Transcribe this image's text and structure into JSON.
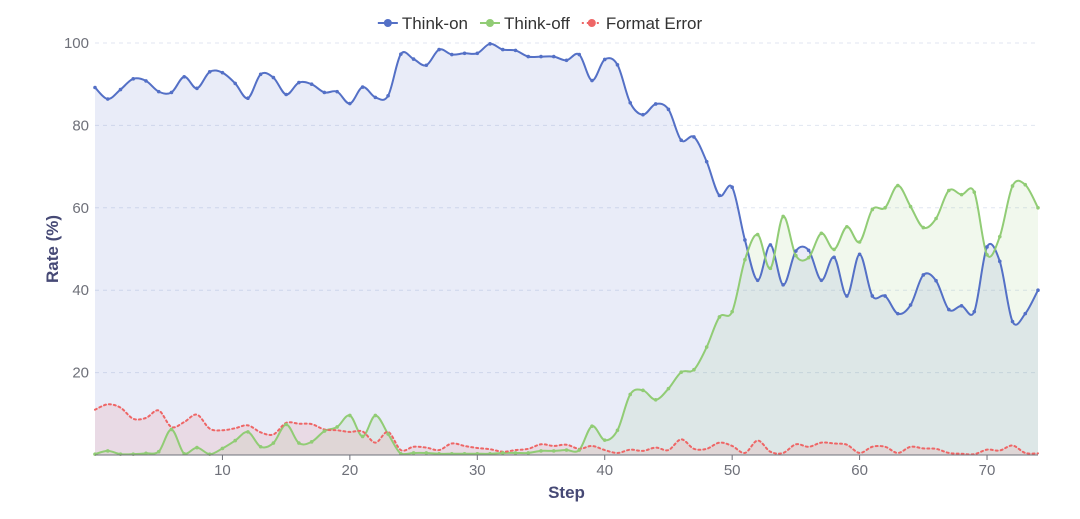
{
  "chart_data": {
    "type": "line",
    "xlabel": "Step",
    "ylabel": "Rate (%)",
    "xlim": [
      0,
      74
    ],
    "ylim": [
      0,
      100
    ],
    "xticks": [
      "10",
      "20",
      "30",
      "40",
      "50",
      "60",
      "70"
    ],
    "yticks": [
      "20",
      "40",
      "60",
      "80",
      "100"
    ],
    "grid": "horizontal dashed",
    "legend_position": "top-center",
    "x": [
      0,
      1,
      2,
      3,
      4,
      5,
      6,
      7,
      8,
      9,
      10,
      11,
      12,
      13,
      14,
      15,
      16,
      17,
      18,
      19,
      20,
      21,
      22,
      23,
      24,
      25,
      26,
      27,
      28,
      29,
      30,
      31,
      32,
      33,
      34,
      35,
      36,
      37,
      38,
      39,
      40,
      41,
      42,
      43,
      44,
      45,
      46,
      47,
      48,
      49,
      50,
      51,
      52,
      53,
      54,
      55,
      56,
      57,
      58,
      59,
      60,
      61,
      62,
      63,
      64,
      65,
      66,
      67,
      68,
      69,
      70,
      71,
      72,
      73,
      74
    ],
    "series": [
      {
        "name": "Think-on",
        "color": "#5470c6",
        "style": "solid",
        "values": [
          89.2,
          86.4,
          88.7,
          91.3,
          90.8,
          88.2,
          88.0,
          91.8,
          89.0,
          93.0,
          92.8,
          90.2,
          86.6,
          92.4,
          91.6,
          87.5,
          90.4,
          90.0,
          88.0,
          88.2,
          85.3,
          89.3,
          86.8,
          87.2,
          97.3,
          96.1,
          94.6,
          98.4,
          97.2,
          97.5,
          97.5,
          99.8,
          98.4,
          98.2,
          96.7,
          96.7,
          96.7,
          95.8,
          97.2,
          90.9,
          96.0,
          94.7,
          85.5,
          82.6,
          85.2,
          83.9,
          76.4,
          77.2,
          71.2,
          63.0,
          65.0,
          52.2,
          42.4,
          51.0,
          41.3,
          49.5,
          49.7,
          42.4,
          48.0,
          38.6,
          48.7,
          38.6,
          38.6,
          34.3,
          36.4,
          43.7,
          42.3,
          35.3,
          36.2,
          34.8,
          50.5,
          47.0,
          32.4,
          34.3,
          40.0
        ]
      },
      {
        "name": "Think-off",
        "color": "#91cc75",
        "style": "solid",
        "values": [
          0.2,
          1.0,
          0.2,
          0.2,
          0.4,
          0.8,
          6.2,
          0.3,
          1.8,
          0.2,
          1.6,
          3.5,
          5.6,
          2.0,
          2.9,
          7.4,
          2.9,
          3.2,
          5.8,
          6.8,
          9.6,
          4.5,
          9.6,
          5.1,
          0.3,
          0.5,
          0.5,
          0.3,
          0.3,
          0.3,
          0.3,
          0.3,
          0.5,
          0.5,
          0.5,
          1.0,
          1.0,
          1.2,
          1.2,
          7.0,
          3.6,
          6.0,
          14.7,
          15.7,
          13.4,
          16.1,
          20.1,
          20.7,
          26.2,
          33.5,
          34.8,
          47.4,
          53.5,
          45.3,
          57.9,
          48.4,
          47.9,
          53.8,
          49.9,
          55.4,
          51.7,
          59.6,
          60.0,
          65.4,
          60.3,
          55.2,
          57.4,
          64.2,
          63.2,
          63.8,
          48.6,
          53.0,
          65.3,
          65.6,
          60.0
        ]
      },
      {
        "name": "Format Error",
        "color": "#ee6666",
        "style": "dotted",
        "values": [
          11.0,
          12.3,
          11.5,
          8.8,
          9.0,
          10.8,
          6.8,
          8.0,
          9.8,
          6.4,
          6.0,
          6.5,
          7.2,
          5.5,
          5.0,
          7.8,
          7.6,
          7.5,
          6.2,
          6.0,
          5.6,
          5.7,
          3.0,
          5.6,
          1.2,
          2.0,
          1.8,
          1.2,
          2.8,
          2.2,
          1.7,
          1.4,
          0.8,
          1.2,
          1.5,
          2.6,
          2.2,
          2.5,
          1.5,
          2.2,
          1.2,
          0.5,
          1.3,
          1.0,
          1.8,
          1.2,
          3.8,
          1.5,
          1.5,
          3.0,
          2.2,
          0.5,
          3.5,
          0.8,
          0.5,
          2.6,
          2.0,
          3.0,
          2.8,
          2.5,
          0.5,
          2.0,
          2.0,
          0.5,
          2.0,
          1.6,
          1.5,
          0.5,
          0.3,
          0.2,
          1.3,
          1.1,
          2.3,
          0.5,
          0.4
        ]
      }
    ]
  }
}
